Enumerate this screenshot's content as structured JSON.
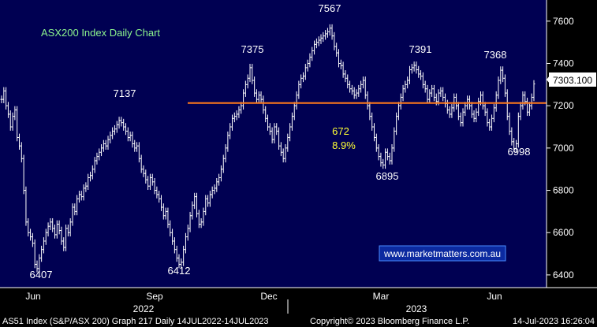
{
  "colors": {
    "plot_bg": "#000052",
    "bar": "#ffffff",
    "support_line": "#ff7a1a",
    "title": "#8df58d",
    "annotation_yellow": "#ffff33",
    "watermark_border": "#4a8cff",
    "watermark_bg": "#0c2aa0",
    "last_price_bg": "#ffffff",
    "last_price_text": "#000000"
  },
  "chart_data": {
    "type": "ohlc",
    "title": "ASX200 Index Daily Chart",
    "ylim": [
      6340,
      7700
    ],
    "y_ticks": [
      6400,
      6600,
      6800,
      7000,
      7200,
      7400,
      7600
    ],
    "x_tick_labels": [
      "Jun",
      "Sep",
      "Dec",
      "Mar",
      "Jun"
    ],
    "year_labels": [
      "2022",
      "2023"
    ],
    "last_price_label": "7303.100",
    "support_line_level": 7213,
    "annotations": [
      "6407",
      "7137",
      "6412",
      "7375",
      "7567",
      "7391",
      "7368",
      "6998",
      "6895",
      "672",
      "8.9%"
    ],
    "series": [
      {
        "values": [
          7230,
          7270,
          7200,
          7160,
          7100,
          7150,
          7180,
          7050,
          7010,
          6950,
          6800,
          6650,
          6600,
          6580,
          6550,
          6450,
          6430,
          6480,
          6520,
          6560,
          6600,
          6630,
          6650,
          6620,
          6590,
          6640,
          6610,
          6560,
          6530,
          6620,
          6600,
          6650,
          6720,
          6700,
          6760,
          6780,
          6770,
          6810,
          6820,
          6860,
          6870,
          6900,
          6940,
          6960,
          6980,
          7000,
          7020,
          7010,
          7040,
          7060,
          7080,
          7090,
          7110,
          7130,
          7120,
          7100,
          7080,
          7050,
          7060,
          7020,
          7000,
          7010,
          6950,
          6900,
          6880,
          6850,
          6820,
          6860,
          6840,
          6800,
          6780,
          6760,
          6720,
          6680,
          6700,
          6640,
          6600,
          6560,
          6520,
          6480,
          6450,
          6460,
          6520,
          6580,
          6620,
          6680,
          6730,
          6770,
          6690,
          6640,
          6650,
          6700,
          6760,
          6740,
          6780,
          6800,
          6810,
          6840,
          6860,
          6900,
          6950,
          7000,
          7060,
          7100,
          7140,
          7150,
          7160,
          7180,
          7200,
          7260,
          7300,
          7330,
          7380,
          7320,
          7260,
          7230,
          7250,
          7230,
          7180,
          7140,
          7100,
          7080,
          7040,
          7100,
          7080,
          7010,
          6980,
          6950,
          7000,
          7050,
          7100,
          7150,
          7200,
          7250,
          7300,
          7330,
          7340,
          7380,
          7400,
          7430,
          7460,
          7490,
          7500,
          7510,
          7520,
          7530,
          7540,
          7550,
          7567,
          7530,
          7480,
          7450,
          7400,
          7390,
          7350,
          7330,
          7300,
          7280,
          7270,
          7250,
          7260,
          7280,
          7300,
          7320,
          7250,
          7200,
          7150,
          7100,
          7050,
          7000,
          6960,
          6930,
          6920,
          6980,
          6960,
          6940,
          7000,
          7080,
          7150,
          7200,
          7240,
          7280,
          7300,
          7320,
          7370,
          7380,
          7391,
          7370,
          7350,
          7340,
          7300,
          7280,
          7230,
          7260,
          7280,
          7240,
          7220,
          7260,
          7270,
          7240,
          7210,
          7180,
          7160,
          7190,
          7240,
          7200,
          7150,
          7120,
          7170,
          7200,
          7230,
          7200,
          7160,
          7140,
          7170,
          7220,
          7250,
          7200,
          7170,
          7120,
          7100,
          7140,
          7190,
          7250,
          7320,
          7368,
          7330,
          7260,
          7150,
          7080,
          7030,
          6998,
          7020,
          7150,
          7200,
          7250,
          7220,
          7170,
          7200,
          7240,
          7303
        ]
      }
    ]
  },
  "watermark": "www.marketmatters.com.au",
  "footer": {
    "left": "AS51 Index (S&P/ASX 200) Graph 217  Daily 14JUL2022-14JUL2023",
    "center": "Copyright© 2023 Bloomberg Finance L.P.",
    "right": "14-Jul-2023 16:26:04"
  }
}
